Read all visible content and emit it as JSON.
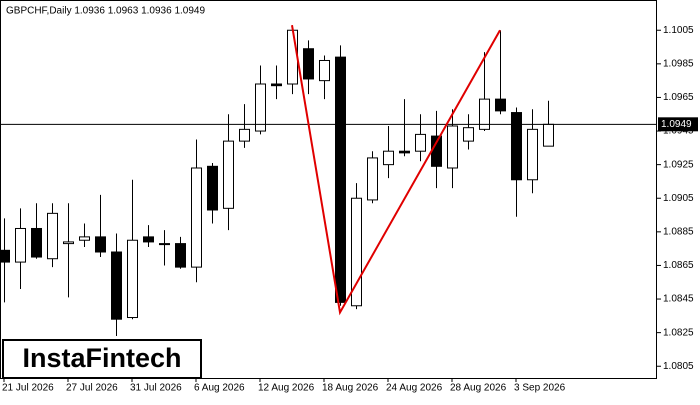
{
  "chart_data": {
    "type": "candlestick",
    "title": "GBPCHF,Daily  1.0936 1.0963 1.0936 1.0949",
    "categories": [
      "21 Jul 2026",
      null,
      null,
      null,
      "27 Jul 2026",
      null,
      null,
      null,
      "31 Jul 2026",
      null,
      null,
      null,
      "6 Aug 2026",
      null,
      null,
      null,
      "12 Aug 2026",
      null,
      null,
      null,
      "18 Aug 2026",
      null,
      null,
      null,
      "24 Aug 2026",
      null,
      null,
      null,
      "28 Aug 2026",
      null,
      null,
      null,
      "3 Sep 2026",
      null,
      null
    ],
    "open": [
      1.0874,
      1.0867,
      1.0887,
      1.0869,
      1.0878,
      1.088,
      1.0882,
      1.0873,
      1.0834,
      1.0882,
      1.0878,
      1.0878,
      1.0864,
      1.0924,
      1.0899,
      1.0939,
      1.0945,
      1.0973,
      1.0973,
      1.0994,
      1.0975,
      1.0989,
      1.0841,
      1.0904,
      1.0925,
      1.0933,
      1.0933,
      1.0942,
      1.0923,
      1.0939,
      1.0946,
      1.0964,
      1.0956,
      1.0916,
      1.0936
    ],
    "high": [
      1.0893,
      1.0899,
      1.0902,
      1.0902,
      1.0902,
      1.089,
      1.0907,
      1.0884,
      1.0916,
      1.0889,
      1.0886,
      1.0882,
      1.094,
      1.0926,
      1.0955,
      1.0961,
      1.0984,
      1.0984,
      1.1008,
      1.0999,
      1.099,
      1.0996,
      1.0914,
      1.0933,
      1.0948,
      1.0964,
      1.0955,
      1.0957,
      1.0958,
      1.0955,
      1.0992,
      1.1005,
      1.0959,
      1.0958,
      1.0963
    ],
    "low": [
      1.0843,
      1.0851,
      1.0869,
      1.0864,
      1.0846,
      1.0876,
      1.087,
      1.0823,
      1.0833,
      1.0876,
      1.0865,
      1.0863,
      1.0855,
      1.089,
      1.0886,
      1.0935,
      1.0943,
      1.0964,
      1.0967,
      1.0967,
      1.0964,
      1.0841,
      1.0839,
      1.0902,
      1.0917,
      1.093,
      1.0927,
      1.0911,
      1.0911,
      1.0934,
      1.0945,
      1.0955,
      1.0894,
      1.0908,
      1.0936
    ],
    "close": [
      1.0867,
      1.0887,
      1.087,
      1.0896,
      1.0879,
      1.0882,
      1.0873,
      1.0833,
      1.088,
      1.0879,
      1.0878,
      1.0864,
      1.0923,
      1.0898,
      1.0939,
      1.0946,
      1.0973,
      1.0972,
      1.1005,
      1.0976,
      1.0987,
      1.0843,
      1.0905,
      1.0929,
      1.0933,
      1.0932,
      1.0943,
      1.0924,
      1.0948,
      1.0947,
      1.0964,
      1.0957,
      1.0916,
      1.0946,
      1.0949
    ],
    "ylim": [
      1.0798,
      1.1023
    ],
    "yticks": [
      1.1005,
      1.0985,
      1.0965,
      1.0945,
      1.0925,
      1.0905,
      1.0885,
      1.0865,
      1.0845,
      1.0825,
      1.0805
    ],
    "last_price": 1.0949,
    "pattern": {
      "values": [
        1.1008,
        1.0837,
        1.1005
      ],
      "color": "#e00000"
    },
    "watermark": "InstaFintech"
  }
}
